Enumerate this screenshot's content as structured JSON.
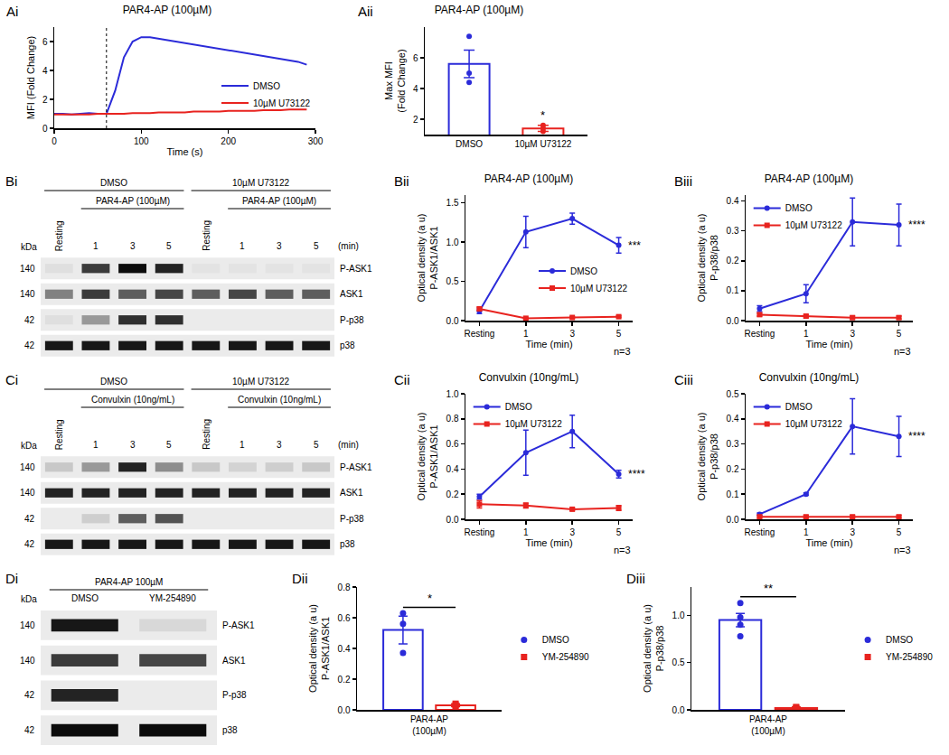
{
  "chart_data": [
    {
      "panel": "Ai",
      "type": "line",
      "title": "PAR4-AP (100µM)",
      "x_label": "Time (s)",
      "y_label": "MFI (Fold Change)",
      "x": [
        0,
        10,
        20,
        30,
        40,
        50,
        60,
        70,
        80,
        90,
        100,
        110,
        120,
        130,
        140,
        150,
        160,
        170,
        180,
        190,
        200,
        210,
        220,
        230,
        240,
        250,
        260,
        270,
        280,
        290
      ],
      "series": [
        {
          "name": "DMSO",
          "color": "#2b2bd9",
          "values": [
            1.0,
            1.0,
            0.95,
            1.0,
            1.05,
            1.0,
            1.0,
            2.6,
            4.9,
            6.0,
            6.3,
            6.3,
            6.2,
            6.1,
            6.0,
            5.9,
            5.8,
            5.7,
            5.6,
            5.5,
            5.4,
            5.3,
            5.2,
            5.1,
            5.0,
            4.9,
            4.8,
            4.7,
            4.6,
            4.4
          ]
        },
        {
          "name": "10µM U73122",
          "color": "#e8231f",
          "values": [
            0.95,
            0.95,
            0.95,
            0.95,
            0.95,
            1.0,
            1.0,
            1.0,
            1.0,
            1.05,
            1.05,
            1.05,
            1.1,
            1.1,
            1.1,
            1.1,
            1.15,
            1.15,
            1.15,
            1.15,
            1.2,
            1.2,
            1.2,
            1.2,
            1.25,
            1.25,
            1.25,
            1.3,
            1.3,
            1.3
          ]
        }
      ],
      "stimulus_time": 60,
      "xlim": [
        0,
        300
      ],
      "xticks": [
        0,
        100,
        200,
        300
      ],
      "ylim": [
        0,
        7
      ],
      "yticks": [
        0,
        2,
        4,
        6
      ],
      "legend": "center right"
    },
    {
      "panel": "Aii",
      "type": "bar",
      "title": "PAR4-AP (100µM)",
      "y_label": "Max MFI\n(Fold Change)",
      "categories": [
        "DMSO",
        "10µM U73122"
      ],
      "values": [
        5.6,
        1.4
      ],
      "errors": [
        0.9,
        0.2
      ],
      "points": [
        [
          7.4,
          5.0,
          4.4
        ],
        [
          1.2,
          1.4,
          1.6
        ]
      ],
      "colors": [
        "#2b2bd9",
        "#e8231f"
      ],
      "significance": [
        {
          "category": "10µM U73122",
          "label": "*"
        }
      ],
      "ylim": [
        1,
        8
      ],
      "yticks": [
        2,
        4,
        6
      ]
    },
    {
      "panel": "Bi",
      "type": "blot",
      "lanes": [
        "Resting",
        "1",
        "3",
        "5",
        "Resting",
        "1",
        "3",
        "5"
      ],
      "unit": "(min)",
      "groups": [
        {
          "label": "DMSO",
          "from": 0,
          "to": 3
        },
        {
          "label": "10µM U73122",
          "from": 4,
          "to": 7
        }
      ],
      "stimuli": [
        {
          "label": "PAR4-AP (100µM)",
          "from": 1,
          "to": 3
        },
        {
          "label": "PAR4-AP (100µM)",
          "from": 5,
          "to": 7
        }
      ],
      "kda_label": "kDa",
      "rows": [
        {
          "name": "P-ASK1",
          "kda": 140,
          "bands": [
            0.05,
            0.75,
            0.95,
            0.85,
            0.03,
            0.03,
            0.03,
            0.03
          ]
        },
        {
          "name": "ASK1",
          "kda": 140,
          "bands": [
            0.45,
            0.75,
            0.6,
            0.7,
            0.6,
            0.7,
            0.6,
            0.6
          ]
        },
        {
          "name": "P-p38",
          "kda": 42,
          "bands": [
            0.05,
            0.35,
            0.8,
            0.8,
            0,
            0,
            0,
            0
          ]
        },
        {
          "name": "p38",
          "kda": 42,
          "bands": [
            0.9,
            0.9,
            0.9,
            0.9,
            0.9,
            0.9,
            0.9,
            0.9
          ]
        }
      ]
    },
    {
      "panel": "Bii",
      "type": "line",
      "title": "PAR4-AP (100µM)",
      "x_label": "Time (min)",
      "y_label": "Optical density (a u)\nP-ASK1/ASK1",
      "categories": [
        "Resting",
        "1",
        "3",
        "5"
      ],
      "series": [
        {
          "name": "DMSO",
          "color": "#2b2bd9",
          "marker": "circle",
          "values": [
            0.12,
            1.13,
            1.3,
            0.96
          ],
          "errors": [
            0.03,
            0.2,
            0.07,
            0.1
          ]
        },
        {
          "name": "10µM U73122",
          "color": "#e8231f",
          "marker": "square",
          "values": [
            0.15,
            0.03,
            0.04,
            0.05
          ],
          "errors": [
            0.02,
            0.01,
            0.01,
            0.01
          ]
        }
      ],
      "significance": "***",
      "n_label": "n=3",
      "ylim": [
        0,
        1.6
      ],
      "yticks": [
        {
          "value": 0,
          "label": "0.0"
        },
        0.5,
        {
          "value": 1,
          "label": "1.0"
        },
        1.5
      ],
      "legend": "lower right"
    },
    {
      "panel": "Biii",
      "type": "line",
      "title": "PAR4-AP (100µM)",
      "x_label": "Time (min)",
      "y_label": "Optical density (a u)\nP-p38/p38",
      "categories": [
        "Resting",
        "1",
        "3",
        "5"
      ],
      "series": [
        {
          "name": "DMSO",
          "color": "#2b2bd9",
          "marker": "circle",
          "values": [
            0.04,
            0.09,
            0.33,
            0.32
          ],
          "errors": [
            0.01,
            0.03,
            0.08,
            0.07
          ]
        },
        {
          "name": "10µM U73122",
          "color": "#e8231f",
          "marker": "square",
          "values": [
            0.02,
            0.015,
            0.01,
            0.01
          ],
          "errors": [
            0.005,
            0.005,
            0.005,
            0.005
          ]
        }
      ],
      "significance": "****",
      "n_label": "n=3",
      "ylim": [
        0,
        0.42
      ],
      "yticks": [
        {
          "value": 0,
          "label": "0.0"
        },
        0.1,
        0.2,
        0.3,
        0.4
      ],
      "legend": "upper left"
    },
    {
      "panel": "Ci",
      "type": "blot",
      "lanes": [
        "Resting",
        "1",
        "3",
        "5",
        "Resting",
        "1",
        "3",
        "5"
      ],
      "unit": "(min)",
      "groups": [
        {
          "label": "DMSO",
          "from": 0,
          "to": 3
        },
        {
          "label": "10µM U73122",
          "from": 4,
          "to": 7
        }
      ],
      "stimuli": [
        {
          "label": "Convulxin (10ng/mL)",
          "from": 1,
          "to": 3
        },
        {
          "label": "Convulxin (10ng/mL)",
          "from": 5,
          "to": 7
        }
      ],
      "kda_label": "kDa",
      "rows": [
        {
          "name": "P-ASK1",
          "kda": 140,
          "bands": [
            0.15,
            0.35,
            0.85,
            0.4,
            0.15,
            0.1,
            0.12,
            0.15
          ]
        },
        {
          "name": "ASK1",
          "kda": 140,
          "bands": [
            0.85,
            0.85,
            0.85,
            0.85,
            0.85,
            0.85,
            0.85,
            0.85
          ]
        },
        {
          "name": "P-p38",
          "kda": 42,
          "bands": [
            0,
            0.12,
            0.6,
            0.65,
            0,
            0,
            0,
            0
          ]
        },
        {
          "name": "p38",
          "kda": 42,
          "bands": [
            0.9,
            0.9,
            0.9,
            0.9,
            0.9,
            0.9,
            0.9,
            0.9
          ]
        }
      ]
    },
    {
      "panel": "Cii",
      "type": "line",
      "title": "Convulxin (10ng/mL)",
      "x_label": "Time (min)",
      "y_label": "Optical density (a u)\nP-ASK1/ASK1",
      "categories": [
        "Resting",
        "1",
        "3",
        "5"
      ],
      "series": [
        {
          "name": "DMSO",
          "color": "#2b2bd9",
          "marker": "circle",
          "values": [
            0.18,
            0.53,
            0.7,
            0.36
          ],
          "errors": [
            0.02,
            0.18,
            0.13,
            0.03
          ]
        },
        {
          "name": "10µM U73122",
          "color": "#e8231f",
          "marker": "square",
          "values": [
            0.12,
            0.11,
            0.08,
            0.09
          ],
          "errors": [
            0.03,
            0.02,
            0.01,
            0.02
          ]
        }
      ],
      "significance": "****",
      "n_label": "n=3",
      "ylim": [
        0,
        1.0
      ],
      "yticks": [
        {
          "value": 0,
          "label": "0.0"
        },
        0.2,
        0.4,
        0.6,
        0.8,
        {
          "value": 1,
          "label": "1.0"
        }
      ],
      "legend": "upper left"
    },
    {
      "panel": "Ciii",
      "type": "line",
      "title": "Convulxin (10ng/mL)",
      "x_label": "Time (min)",
      "y_label": "Optical density (a u)\nP-p38/p38",
      "categories": [
        "Resting",
        "1",
        "3",
        "5"
      ],
      "series": [
        {
          "name": "DMSO",
          "color": "#2b2bd9",
          "marker": "circle",
          "values": [
            0.02,
            0.1,
            0.37,
            0.33
          ],
          "errors": [
            0.005,
            0.005,
            0.11,
            0.08
          ]
        },
        {
          "name": "10µM U73122",
          "color": "#e8231f",
          "marker": "square",
          "values": [
            0.01,
            0.01,
            0.01,
            0.01
          ],
          "errors": [
            0.005,
            0.005,
            0.005,
            0.005
          ]
        }
      ],
      "significance": "****",
      "n_label": "n=3",
      "ylim": [
        0,
        0.5
      ],
      "yticks": [
        {
          "value": 0,
          "label": "0.0"
        },
        0.1,
        0.2,
        0.3,
        0.4,
        0.5
      ],
      "legend": "upper left"
    },
    {
      "panel": "Di",
      "type": "blot",
      "lanes": [
        "DMSO",
        "YM-254890"
      ],
      "groups": [],
      "stimuli": [
        {
          "label": "PAR4-AP 100µM",
          "from": 0,
          "to": 1
        }
      ],
      "kda_label": "kDa",
      "rows": [
        {
          "name": "P-ASK1",
          "kda": 140,
          "bands": [
            0.9,
            0.08
          ]
        },
        {
          "name": "ASK1",
          "kda": 140,
          "bands": [
            0.75,
            0.7
          ]
        },
        {
          "name": "P-p38",
          "kda": 42,
          "bands": [
            0.85,
            0
          ]
        },
        {
          "name": "p38",
          "kda": 42,
          "bands": [
            0.95,
            0.95
          ]
        }
      ]
    },
    {
      "panel": "Dii",
      "type": "bar",
      "y_label": "Optical density (a u)\nP-ASK1/ASK1",
      "categories": [
        "PAR4-AP\n(100µM)"
      ],
      "series": [
        {
          "name": "DMSO",
          "color": "#2b2bd9",
          "marker": "circle",
          "values": [
            0.52
          ],
          "errors": [
            0.09
          ],
          "points": [
            [
              0.63,
              0.56,
              0.37
            ]
          ]
        },
        {
          "name": "YM-254890",
          "color": "#e8231f",
          "marker": "square",
          "values": [
            0.03
          ],
          "errors": [
            0.01
          ],
          "points": [
            [
              0.01,
              0.03,
              0.04
            ]
          ]
        }
      ],
      "significance": "*",
      "ylim": [
        0,
        0.8
      ],
      "yticks": [
        {
          "value": 0,
          "label": "0.0"
        },
        0.2,
        0.4,
        0.6,
        0.8
      ],
      "legend": "right"
    },
    {
      "panel": "Diii",
      "type": "bar",
      "y_label": "Optical density (a u)\nP-p38/p38",
      "categories": [
        "PAR4-AP\n(100µM)"
      ],
      "series": [
        {
          "name": "DMSO",
          "color": "#2b2bd9",
          "marker": "circle",
          "values": [
            0.95
          ],
          "errors": [
            0.07
          ],
          "points": [
            [
              1.13,
              0.98,
              0.9,
              0.78
            ]
          ]
        },
        {
          "name": "YM-254890",
          "color": "#e8231f",
          "marker": "square",
          "values": [
            0.02
          ],
          "errors": [
            0.01
          ],
          "points": [
            [
              0.01,
              0.02,
              0.03
            ]
          ]
        }
      ],
      "significance": "**",
      "ylim": [
        0,
        1.3
      ],
      "yticks": [
        {
          "value": 0,
          "label": "0.0"
        },
        0.5,
        {
          "value": 1,
          "label": "1.0"
        }
      ],
      "legend": "right"
    }
  ]
}
